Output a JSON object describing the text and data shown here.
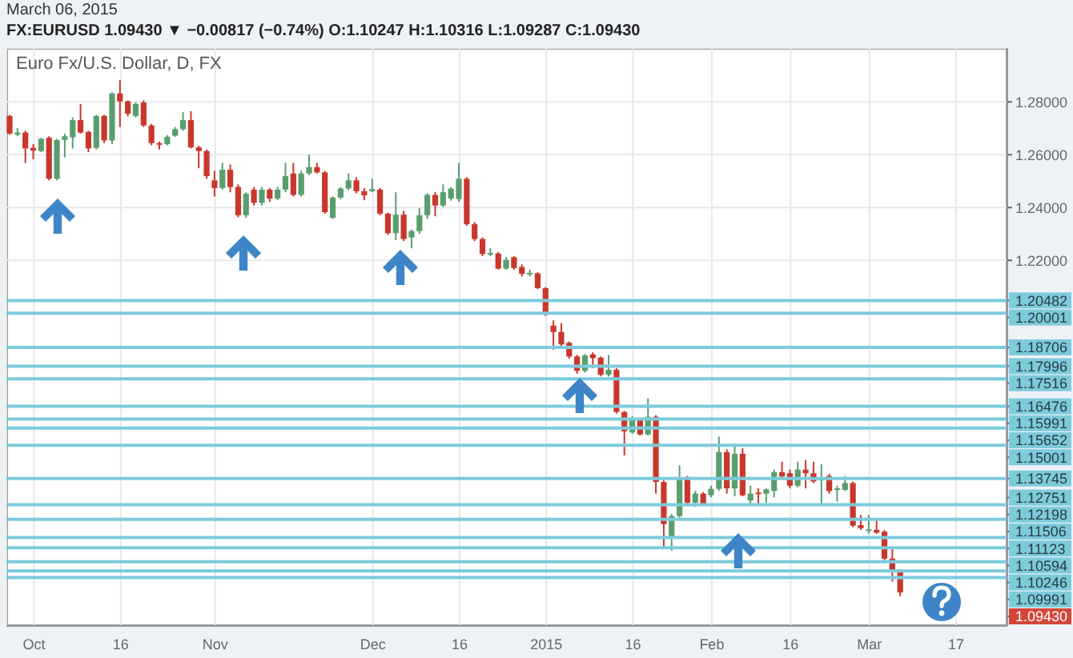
{
  "chart_data": {
    "type": "candlestick",
    "title": "FX:EURUSD 1.09430 ▼ −0.00817 (−0.74%) O:1.10247 H:1.10316 L:1.09287 C:1.09430",
    "subtitle": "March 06, 2015",
    "categories": [
      null,
      null,
      null,
      "Oct",
      null,
      null,
      null,
      null,
      null,
      null,
      null,
      null,
      null,
      null,
      "16",
      null,
      null,
      null,
      null,
      null,
      null,
      null,
      null,
      null,
      null,
      null,
      "Nov",
      null,
      null,
      null,
      null,
      null,
      null,
      null,
      null,
      null,
      null,
      null,
      null,
      null,
      null,
      null,
      null,
      null,
      null,
      null,
      "Dec",
      null,
      null,
      null,
      null,
      null,
      null,
      null,
      null,
      null,
      null,
      "16",
      null,
      null,
      null,
      null,
      null,
      null,
      null,
      null,
      null,
      null,
      "2015",
      null,
      null,
      null,
      null,
      null,
      null,
      null,
      null,
      null,
      null,
      "16",
      null,
      null,
      null,
      null,
      null,
      null,
      null,
      null,
      null,
      "Feb",
      null,
      null,
      null,
      null,
      null,
      null,
      null,
      null,
      null,
      "16",
      null,
      null,
      null,
      null,
      null,
      null,
      null,
      null,
      null,
      "Mar",
      null,
      null,
      null,
      null,
      null,
      null,
      null,
      null,
      null,
      null,
      "17",
      null,
      null,
      null,
      null,
      null,
      null
    ],
    "ohlc": [
      [
        1.2747,
        1.2751,
        1.2676,
        1.268
      ],
      [
        1.2676,
        1.2701,
        1.267,
        1.2684
      ],
      [
        1.2684,
        1.2691,
        1.2569,
        1.2624
      ],
      [
        1.2626,
        1.264,
        1.2583,
        1.2616
      ],
      [
        1.2614,
        1.2664,
        1.261,
        1.266
      ],
      [
        1.2664,
        1.267,
        1.2503,
        1.2509
      ],
      [
        1.2509,
        1.266,
        1.2503,
        1.2656
      ],
      [
        1.2656,
        1.268,
        1.259,
        1.267
      ],
      [
        1.2666,
        1.2741,
        1.2624,
        1.2731
      ],
      [
        1.2731,
        1.2792,
        1.268,
        1.2684
      ],
      [
        1.2686,
        1.2691,
        1.261,
        1.2624
      ],
      [
        1.2626,
        1.2751,
        1.262,
        1.2747
      ],
      [
        1.2747,
        1.2751,
        1.2644,
        1.2654
      ],
      [
        1.2654,
        1.2836,
        1.264,
        1.2832
      ],
      [
        1.2832,
        1.2882,
        1.2705,
        1.2802
      ],
      [
        1.2802,
        1.2806,
        1.2745,
        1.2755
      ],
      [
        1.2747,
        1.2798,
        1.2741,
        1.2792
      ],
      [
        1.2798,
        1.2806,
        1.2705,
        1.2711
      ],
      [
        1.2711,
        1.2717,
        1.2636,
        1.2644
      ],
      [
        1.2644,
        1.265,
        1.262,
        1.2642
      ],
      [
        1.264,
        1.2674,
        1.2636,
        1.2668
      ],
      [
        1.2672,
        1.2705,
        1.2668,
        1.2697
      ],
      [
        1.2697,
        1.2761,
        1.2691,
        1.2731
      ],
      [
        1.2731,
        1.2765,
        1.2624,
        1.2628
      ],
      [
        1.2628,
        1.2634,
        1.2549,
        1.2614
      ],
      [
        1.2614,
        1.262,
        1.2509,
        1.2519
      ],
      [
        1.2503,
        1.2539,
        1.2442,
        1.2474
      ],
      [
        1.2474,
        1.2569,
        1.2468,
        1.2543
      ],
      [
        1.2543,
        1.2563,
        1.2458,
        1.2478
      ],
      [
        1.2478,
        1.2488,
        1.2363,
        1.2371
      ],
      [
        1.2371,
        1.2458,
        1.2361,
        1.2452
      ],
      [
        1.2468,
        1.2478,
        1.2408,
        1.2418
      ],
      [
        1.2418,
        1.2478,
        1.2408,
        1.2468
      ],
      [
        1.2468,
        1.2474,
        1.2422,
        1.2434
      ],
      [
        1.2434,
        1.2478,
        1.2428,
        1.2468
      ],
      [
        1.2468,
        1.2569,
        1.2458,
        1.2519
      ],
      [
        1.2529,
        1.2569,
        1.2442,
        1.2448
      ],
      [
        1.2448,
        1.2539,
        1.2442,
        1.2529
      ],
      [
        1.2529,
        1.26,
        1.2523,
        1.2553
      ],
      [
        1.2553,
        1.2569,
        1.2529,
        1.2533
      ],
      [
        1.2533,
        1.2539,
        1.2377,
        1.2383
      ],
      [
        1.2361,
        1.2442,
        1.2357,
        1.2438
      ],
      [
        1.2438,
        1.2478,
        1.2432,
        1.2472
      ],
      [
        1.2472,
        1.2529,
        1.2466,
        1.2503
      ],
      [
        1.2503,
        1.2515,
        1.2454,
        1.2462
      ],
      [
        1.2462,
        1.2474,
        1.2428,
        1.2446
      ],
      [
        1.2462,
        1.2509,
        1.2458,
        1.247
      ],
      [
        1.2468,
        1.2474,
        1.2371,
        1.2377
      ],
      [
        1.2377,
        1.2381,
        1.2297,
        1.2303
      ],
      [
        1.2303,
        1.2458,
        1.2277,
        1.2373
      ],
      [
        1.2373,
        1.2388,
        1.2273,
        1.2281
      ],
      [
        1.2287,
        1.2317,
        1.2246,
        1.2311
      ],
      [
        1.2311,
        1.2398,
        1.2301,
        1.2371
      ],
      [
        1.2371,
        1.2454,
        1.2357,
        1.2448
      ],
      [
        1.2448,
        1.2458,
        1.2367,
        1.2408
      ],
      [
        1.2408,
        1.2488,
        1.2402,
        1.2458
      ],
      [
        1.2434,
        1.2478,
        1.2426,
        1.2472
      ],
      [
        1.2432,
        1.2569,
        1.2422,
        1.2509
      ],
      [
        1.2509,
        1.2515,
        1.2331,
        1.2337
      ],
      [
        1.2337,
        1.2345,
        1.2273,
        1.2281
      ],
      [
        1.2281,
        1.2287,
        1.2216,
        1.2224
      ],
      [
        1.2226,
        1.2246,
        1.2216,
        1.2228
      ],
      [
        1.2226,
        1.2232,
        1.2165,
        1.2169
      ],
      [
        1.2169,
        1.2212,
        1.2165,
        1.2202
      ],
      [
        1.2212,
        1.2216,
        1.2165,
        1.2171
      ],
      [
        1.2175,
        1.2185,
        1.2139,
        1.2149
      ],
      [
        1.2151,
        1.2165,
        1.2139,
        1.2153
      ],
      [
        1.2151,
        1.2155,
        1.2091,
        1.2095
      ],
      [
        1.2095,
        1.2099,
        1.199,
        1.1994
      ],
      [
        1.1953,
        1.1973,
        1.1862,
        1.1929
      ],
      [
        1.1929,
        1.1963,
        1.1876,
        1.1882
      ],
      [
        1.1888,
        1.1893,
        1.1828,
        1.1836
      ],
      [
        1.1836,
        1.1842,
        1.1771,
        1.1782
      ],
      [
        1.1782,
        1.1846,
        1.1775,
        1.184
      ],
      [
        1.1844,
        1.1852,
        1.1792,
        1.183
      ],
      [
        1.1832,
        1.1836,
        1.1761,
        1.1767
      ],
      [
        1.1767,
        1.1842,
        1.1761,
        1.1786
      ],
      [
        1.1786,
        1.1792,
        1.162,
        1.1626
      ],
      [
        1.1626,
        1.163,
        1.1462,
        1.1553
      ],
      [
        1.1549,
        1.161,
        1.1543,
        1.1596
      ],
      [
        1.1596,
        1.1602,
        1.1537,
        1.1541
      ],
      [
        1.1541,
        1.1678,
        1.1537,
        1.1608
      ],
      [
        1.1608,
        1.1614,
        1.1317,
        1.1361
      ],
      [
        1.1361,
        1.1367,
        1.1115,
        1.1202
      ],
      [
        1.1149,
        1.124,
        1.1101,
        1.1232
      ],
      [
        1.1232,
        1.1424,
        1.1226,
        1.1378
      ],
      [
        1.1378,
        1.1384,
        1.1275,
        1.1283
      ],
      [
        1.1283,
        1.1327,
        1.1267,
        1.1317
      ],
      [
        1.1317,
        1.1323,
        1.1271,
        1.1277
      ],
      [
        1.1311,
        1.1347,
        1.1303,
        1.1335
      ],
      [
        1.1335,
        1.1533,
        1.1327,
        1.1474
      ],
      [
        1.1474,
        1.1485,
        1.1317,
        1.1337
      ],
      [
        1.1337,
        1.1499,
        1.1307,
        1.1468
      ],
      [
        1.1468,
        1.1489,
        1.1307,
        1.1311
      ],
      [
        1.1291,
        1.1347,
        1.1271,
        1.1317
      ],
      [
        1.1321,
        1.1337,
        1.1277,
        1.1315
      ],
      [
        1.1317,
        1.1337,
        1.1283,
        1.1333
      ],
      [
        1.1327,
        1.1408,
        1.1303,
        1.1398
      ],
      [
        1.1398,
        1.1438,
        1.1371,
        1.1382
      ],
      [
        1.1394,
        1.1408,
        1.1337,
        1.1347
      ],
      [
        1.1347,
        1.1438,
        1.1341,
        1.1408
      ],
      [
        1.1408,
        1.1444,
        1.1337,
        1.1394
      ],
      [
        1.1394,
        1.1438,
        1.1357,
        1.1363
      ],
      [
        1.1367,
        1.1428,
        1.1277,
        1.1373
      ],
      [
        1.1384,
        1.1392,
        1.1317,
        1.1327
      ],
      [
        1.1331,
        1.1347,
        1.1287,
        1.1337
      ],
      [
        1.1331,
        1.1384,
        1.1327,
        1.1357
      ],
      [
        1.1357,
        1.1363,
        1.119,
        1.1196
      ],
      [
        1.1198,
        1.1236,
        1.118,
        1.1186
      ],
      [
        1.118,
        1.1236,
        1.1165,
        1.1182
      ],
      [
        1.118,
        1.1216,
        1.1165,
        1.1169
      ],
      [
        1.1173,
        1.118,
        1.1065,
        1.1071
      ],
      [
        1.1071,
        1.1109,
        1.0984,
        1.102
      ],
      [
        1.10247,
        1.10316,
        1.09287,
        1.0943
      ],
      null,
      null,
      null,
      null,
      null,
      null,
      null,
      null,
      null,
      null,
      null,
      null,
      null
    ],
    "colors": [
      "#c9372c",
      "#5a9e6f",
      "#c9372c",
      "#c9372c",
      "#5a9e6f",
      "#c9372c",
      "#5a9e6f",
      "#5a9e6f",
      "#5a9e6f",
      "#c9372c",
      "#c9372c",
      "#5a9e6f",
      "#c9372c",
      "#5a9e6f",
      "#c9372c",
      "#c9372c",
      "#5a9e6f",
      "#c9372c",
      "#c9372c",
      "#c9372c",
      "#5a9e6f",
      "#5a9e6f",
      "#5a9e6f",
      "#c9372c",
      "#c9372c",
      "#c9372c",
      "#c9372c",
      "#5a9e6f",
      "#c9372c",
      "#c9372c",
      "#5a9e6f",
      "#c9372c",
      "#5a9e6f",
      "#c9372c",
      "#5a9e6f",
      "#5a9e6f",
      "#c9372c",
      "#5a9e6f",
      "#5a9e6f",
      "#c9372c",
      "#c9372c",
      "#5a9e6f",
      "#5a9e6f",
      "#5a9e6f",
      "#c9372c",
      "#c9372c",
      "#5a9e6f",
      "#c9372c",
      "#c9372c",
      "#5a9e6f",
      "#c9372c",
      "#5a9e6f",
      "#5a9e6f",
      "#5a9e6f",
      "#c9372c",
      "#5a9e6f",
      "#5a9e6f",
      "#5a9e6f",
      "#c9372c",
      "#c9372c",
      "#c9372c",
      "#5a9e6f",
      "#c9372c",
      "#5a9e6f",
      "#c9372c",
      "#c9372c",
      "#5a9e6f",
      "#c9372c",
      "#c9372c",
      "#c9372c",
      "#c9372c",
      "#c9372c",
      "#c9372c",
      "#5a9e6f",
      "#c9372c",
      "#c9372c",
      "#5a9e6f",
      "#c9372c",
      "#c9372c",
      "#5a9e6f",
      "#c9372c",
      "#5a9e6f",
      "#c9372c",
      "#c9372c",
      "#5a9e6f",
      "#5a9e6f",
      "#c9372c",
      "#5a9e6f",
      "#c9372c",
      "#5a9e6f",
      "#5a9e6f",
      "#c9372c",
      "#5a9e6f",
      "#c9372c",
      "#5a9e6f",
      "#c9372c",
      "#5a9e6f",
      "#5a9e6f",
      "#c9372c",
      "#c9372c",
      "#5a9e6f",
      "#c9372c",
      "#c9372c",
      "#5a9e6f",
      "#c9372c",
      "#5a9e6f",
      "#5a9e6f",
      "#c9372c",
      "#c9372c",
      "#5a9e6f",
      "#c9372c",
      "#c9372c",
      "#c9372c",
      "#c9372c",
      null,
      null,
      null,
      null,
      null,
      null,
      null,
      null,
      null,
      null,
      null,
      null,
      null
    ],
    "ylim": [
      1.0816,
      1.3004
    ],
    "yticks": [
      {
        "value": 1.22,
        "label": "1.22000"
      },
      {
        "value": 1.24,
        "label": "1.24000"
      },
      {
        "value": 1.26,
        "label": "1.26000"
      },
      {
        "value": 1.28,
        "label": "1.28000"
      }
    ],
    "grid": true,
    "ref_lines": [
      {
        "axis": "y",
        "value": 1.20482,
        "label": "1.20482",
        "color": "#7ccbdc"
      },
      {
        "axis": "y",
        "value": 1.20001,
        "label": "1.20001",
        "color": "#7ccbdc"
      },
      {
        "axis": "y",
        "value": 1.18706,
        "label": "1.18706",
        "color": "#7ccbdc"
      },
      {
        "axis": "y",
        "value": 1.17996,
        "label": "1.17996",
        "color": "#7ccbdc"
      },
      {
        "axis": "y",
        "value": 1.17516,
        "label": "1.17516",
        "color": "#7ccbdc"
      },
      {
        "axis": "y",
        "value": 1.16476,
        "label": "1.16476",
        "color": "#7ccbdc"
      },
      {
        "axis": "y",
        "value": 1.15991,
        "label": "1.15991",
        "color": "#7ccbdc"
      },
      {
        "axis": "y",
        "value": 1.15652,
        "label": "1.15652",
        "color": "#7ccbdc"
      },
      {
        "axis": "y",
        "value": 1.15001,
        "label": "1.15001",
        "color": "#7ccbdc"
      },
      {
        "axis": "y",
        "value": 1.13745,
        "label": "1.13745",
        "color": "#7ccbdc"
      },
      {
        "axis": "y",
        "value": 1.12751,
        "label": "1.12751",
        "color": "#7ccbdc"
      },
      {
        "axis": "y",
        "value": 1.12198,
        "label": "1.12198",
        "color": "#7ccbdc"
      },
      {
        "axis": "y",
        "value": 1.11506,
        "label": "1.11506",
        "color": "#7ccbdc"
      },
      {
        "axis": "y",
        "value": 1.11123,
        "label": "1.11123",
        "color": "#7ccbdc"
      },
      {
        "axis": "y",
        "value": 1.10594,
        "label": "1.10594",
        "color": "#7ccbdc"
      },
      {
        "axis": "y",
        "value": 1.10246,
        "label": "1.10246",
        "color": "#7ccbdc"
      },
      {
        "axis": "y",
        "value": 1.09991,
        "label": "1.09991",
        "color": "#7ccbdc"
      }
    ],
    "annotations": [
      "Euro Fx/U.S. Dollar, D, FX",
      "1.09430"
    ]
  }
}
